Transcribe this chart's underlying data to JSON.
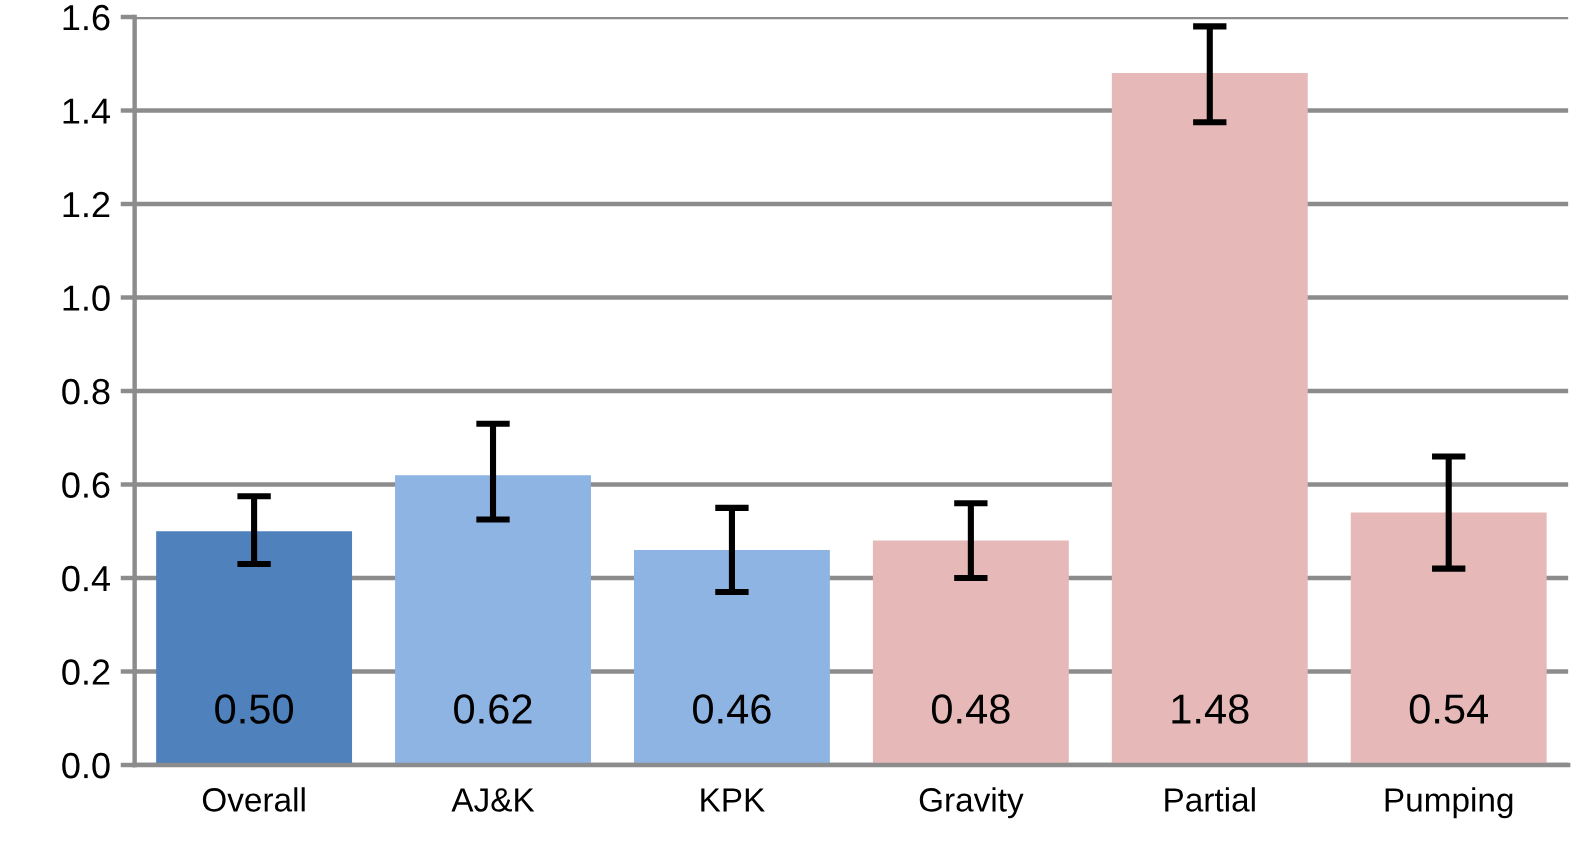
{
  "chart_data": {
    "type": "bar",
    "categories": [
      "Overall",
      "AJ&K",
      "KPK",
      "Gravity",
      "Partial",
      "Pumping"
    ],
    "values": [
      0.5,
      0.62,
      0.46,
      0.48,
      1.48,
      0.54
    ],
    "value_labels": [
      "0.50",
      "0.62",
      "0.46",
      "0.48",
      "1.48",
      "0.54"
    ],
    "colors": [
      "#4f81bd",
      "#8eb4e3",
      "#8eb4e3",
      "#e6b9b8",
      "#e6b9b8",
      "#e6b9b8"
    ],
    "errors": [
      [
        0.43,
        0.575
      ],
      [
        0.525,
        0.73
      ],
      [
        0.37,
        0.55
      ],
      [
        0.4,
        0.56
      ],
      [
        1.375,
        1.58
      ],
      [
        0.42,
        0.66
      ]
    ],
    "ylim": [
      0,
      1.6
    ],
    "yticks": [
      {
        "value": 0,
        "label": "0.0"
      },
      {
        "value": 0.2,
        "label": "0.2"
      },
      {
        "value": 0.4,
        "label": "0.4"
      },
      {
        "value": 0.6,
        "label": "0.6"
      },
      {
        "value": 0.8,
        "label": "0.8"
      },
      {
        "value": 1.0,
        "label": "1.0"
      },
      {
        "value": 1.2,
        "label": "1.2"
      },
      {
        "value": 1.4,
        "label": "1.4"
      },
      {
        "value": 1.6,
        "label": "1.6"
      }
    ],
    "grid": "y"
  }
}
